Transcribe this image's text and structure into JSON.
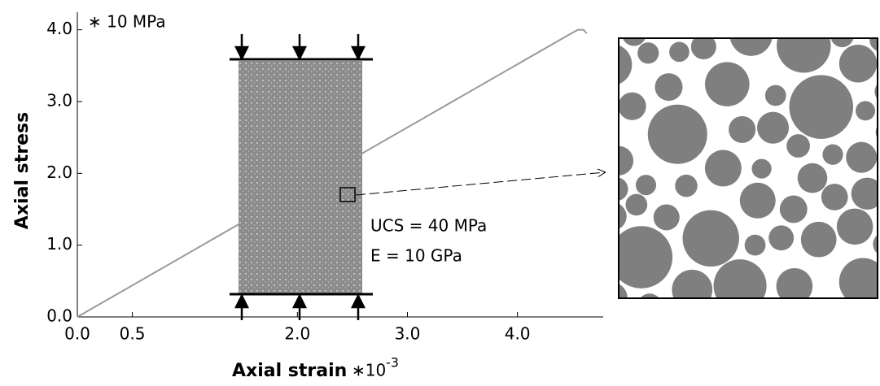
{
  "chart_data": {
    "type": "line",
    "y_unit": "∗ 10  MPa",
    "x_label": "Axial strain",
    "x_unit_prefix": "∗10",
    "x_unit_exponent": "-3",
    "y_label": "Axial stress",
    "annotations": [
      "UCS = 40 MPa",
      "E = 10 GPa"
    ],
    "xlim": [
      0,
      4.75
    ],
    "ylim": [
      0,
      4.2
    ],
    "xticks": [
      {
        "value": 0,
        "label": "0.0"
      },
      {
        "value": 0.5,
        "label": "0.5"
      },
      {
        "value": 2,
        "label": "2.0"
      },
      {
        "value": 3,
        "label": "3.0"
      },
      {
        "value": 4,
        "label": "4.0"
      }
    ],
    "yticks": [
      {
        "value": 0,
        "label": "0.0"
      },
      {
        "value": 1,
        "label": "1.0"
      },
      {
        "value": 2,
        "label": "2.0"
      },
      {
        "value": 3,
        "label": "3.0"
      },
      {
        "value": 4,
        "label": "4.0"
      }
    ],
    "series": [
      {
        "color": "#999999",
        "x": [
          0,
          4.5,
          4.55,
          4.6,
          4.63
        ],
        "values": [
          0,
          3.96,
          4.0,
          4.0,
          3.95
        ]
      }
    ]
  }
}
